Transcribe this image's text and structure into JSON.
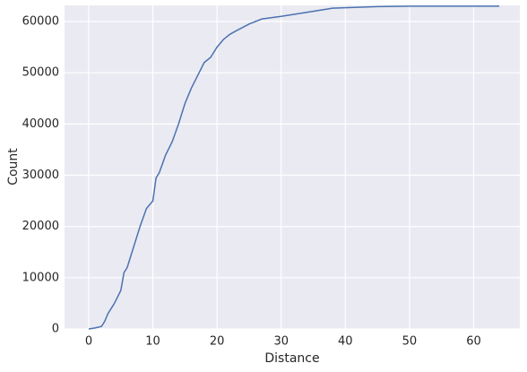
{
  "chart_data": {
    "type": "line",
    "xlabel": "Distance",
    "ylabel": "Count",
    "x": [
      0,
      1,
      2,
      2.5,
      3,
      4,
      5,
      5.5,
      6,
      7,
      8,
      9,
      10,
      10.5,
      11,
      12,
      13,
      14,
      15,
      16,
      17,
      18,
      19,
      20,
      21,
      22,
      23,
      25,
      27,
      30,
      35,
      38,
      45,
      50,
      64
    ],
    "series": [
      {
        "color": "#4c72b0",
        "values": [
          0,
          200,
          500,
          1500,
          3000,
          5000,
          7500,
          11000,
          12000,
          16000,
          20000,
          23500,
          25000,
          29500,
          30500,
          34000,
          36500,
          40000,
          44000,
          47000,
          49500,
          52000,
          53000,
          55000,
          56500,
          57500,
          58200,
          59500,
          60500,
          61000,
          62000,
          62600,
          62900,
          63000,
          63000
        ]
      }
    ],
    "xlim": [
      -3.77,
      67.2
    ],
    "ylim": [
      0,
      63150
    ],
    "xticks": [
      0,
      10,
      20,
      30,
      40,
      50,
      60
    ],
    "yticks": [
      0,
      10000,
      20000,
      30000,
      40000,
      50000,
      60000
    ],
    "grid": true
  }
}
